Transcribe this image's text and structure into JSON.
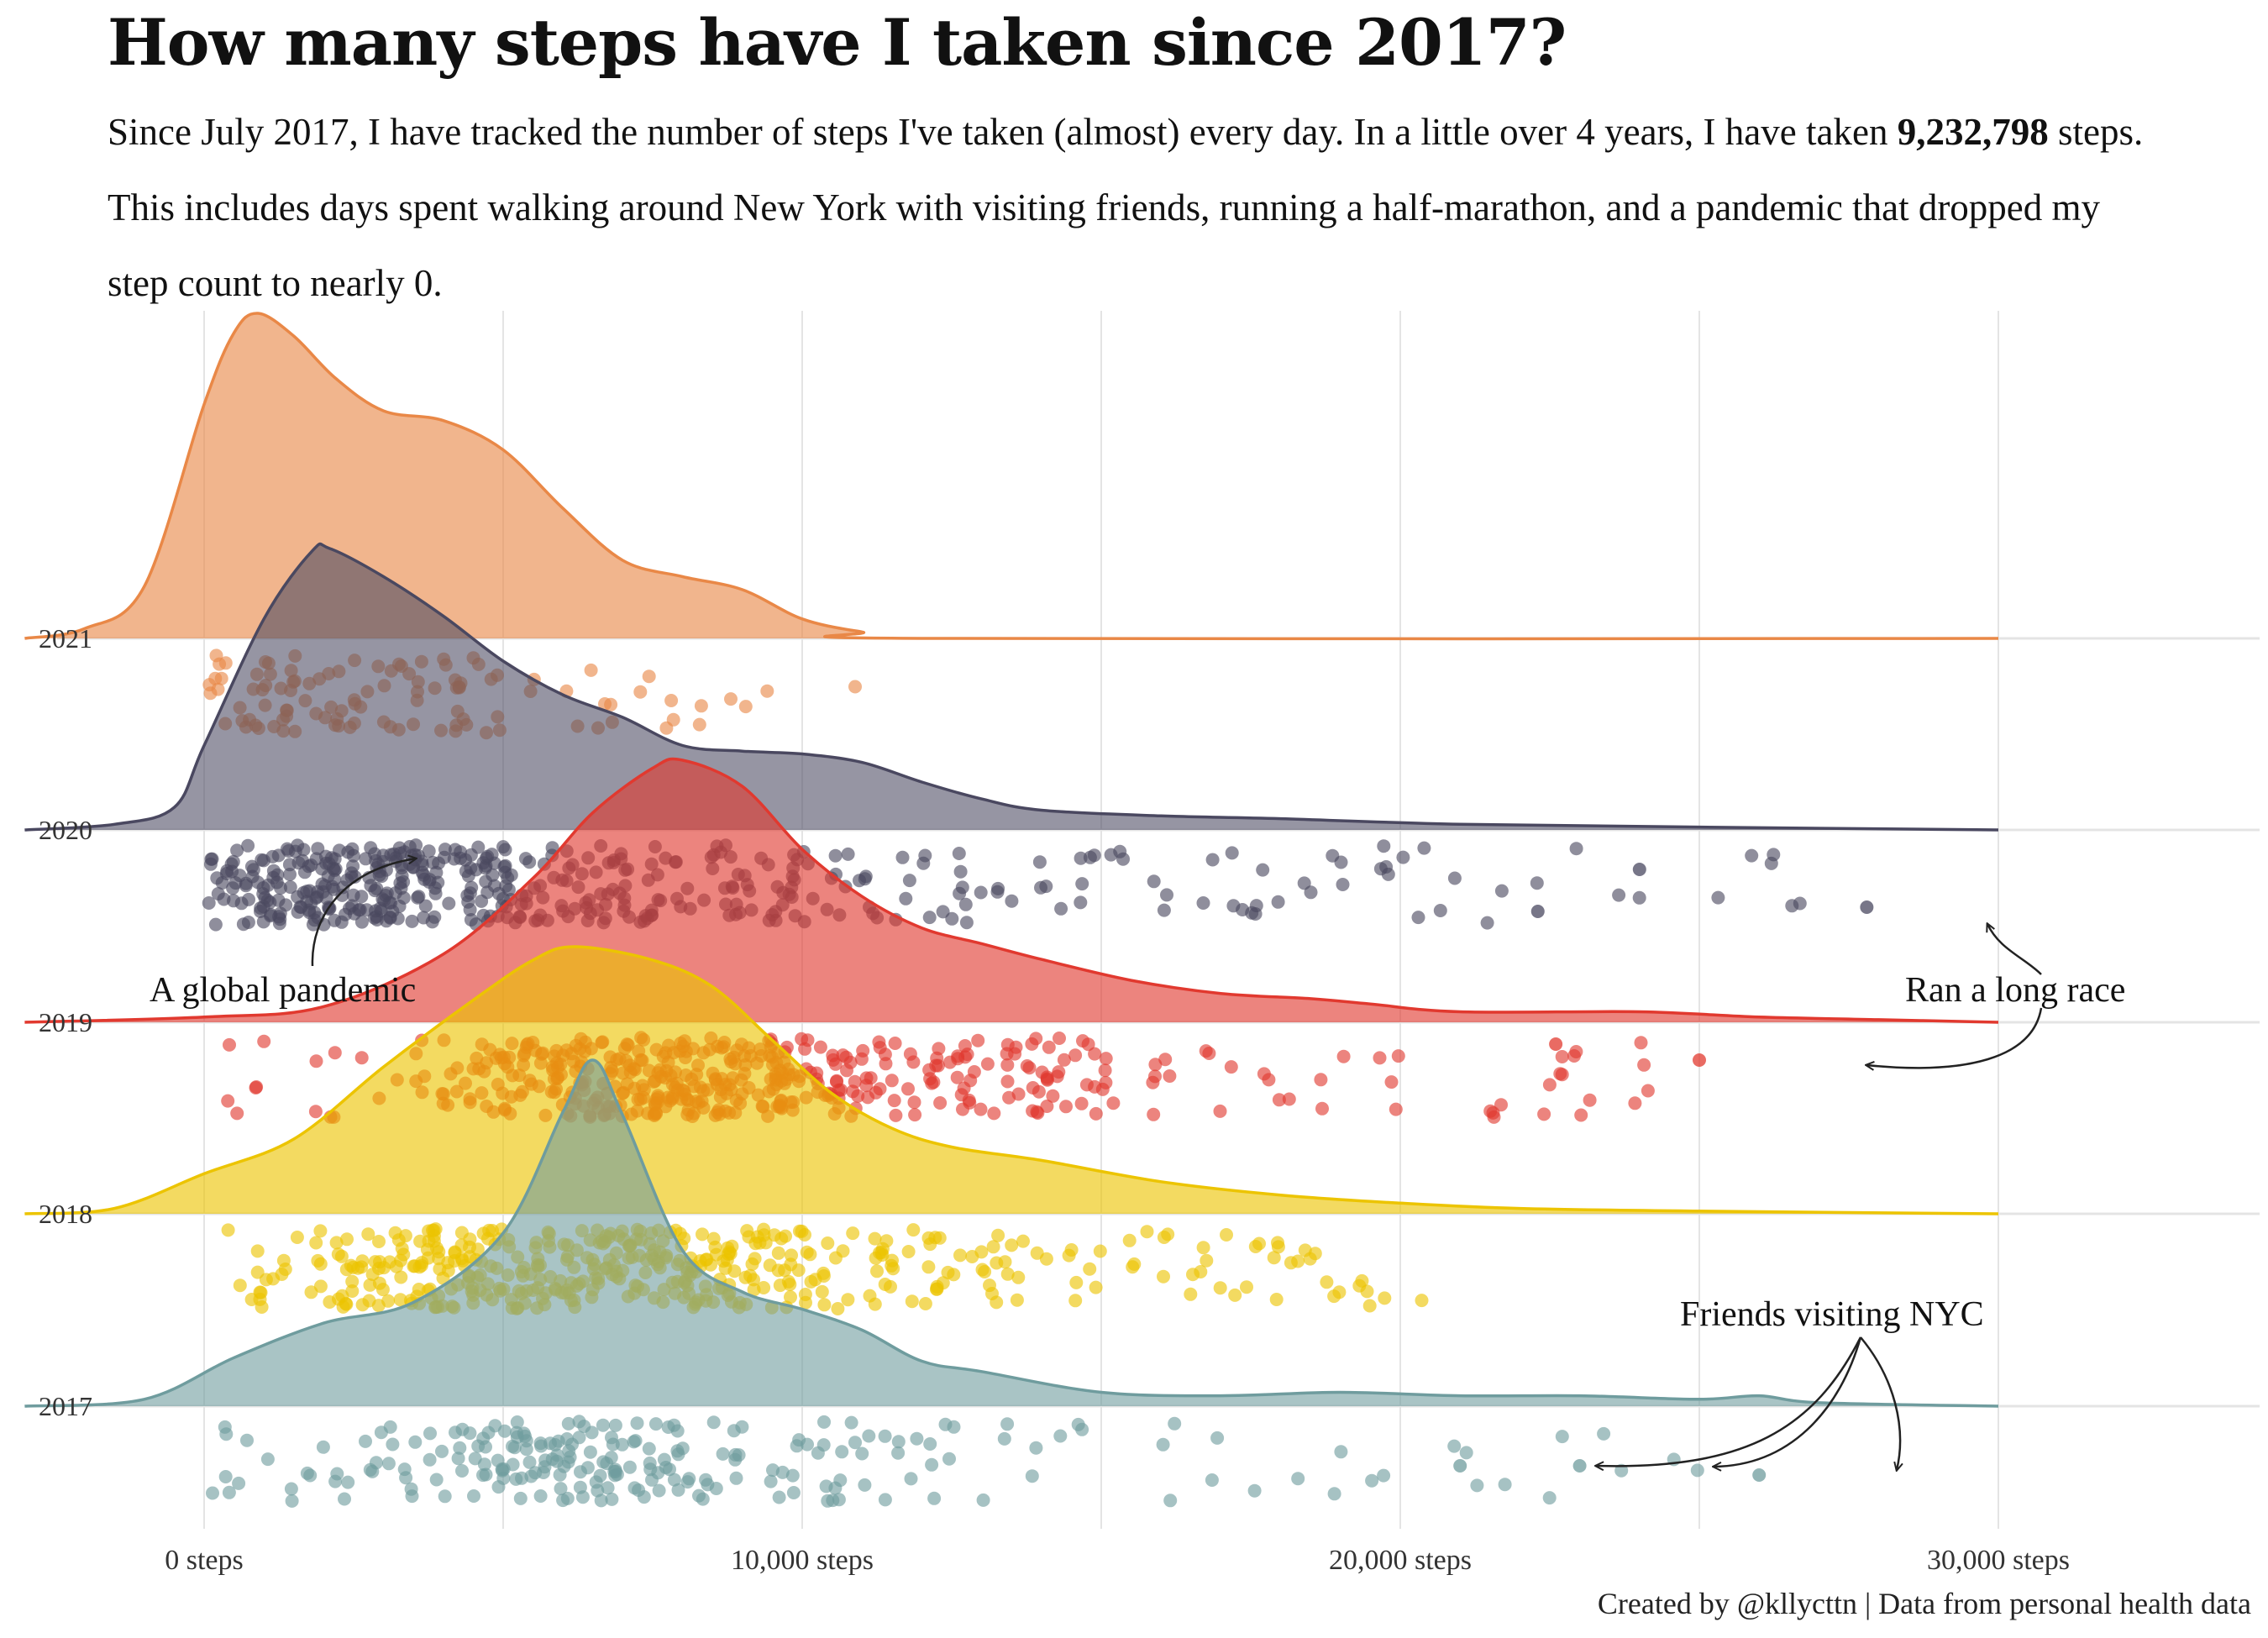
{
  "title": "How many steps have I taken since 2017?",
  "subtitle": {
    "part1": "Since July 2017, I have tracked the number of steps I've taken (almost) every day. In a little over 4 years, I have taken ",
    "total": "9,232,798",
    "part2": " steps. This includes days spent walking around New York with visiting friends, running a half-marathon, and a pandemic that dropped my step count to nearly 0."
  },
  "caption": "Created by @kllycttn | Data from personal health data",
  "chart_data": {
    "type": "ridgeline",
    "x_axis": {
      "range": [
        -3000,
        30000
      ],
      "ticks": [
        0,
        10000,
        20000,
        30000
      ],
      "tick_labels": [
        "0 steps",
        "10,000 steps",
        "20,000 steps",
        "30,000 steps"
      ]
    },
    "grid": true,
    "series": [
      {
        "name": "2017",
        "color": "#6f9c9e",
        "peak_position": 6500,
        "max_steps": 26000,
        "density": [
          [
            -3000,
            0
          ],
          [
            -1000,
            0.02
          ],
          [
            500,
            0.14
          ],
          [
            2000,
            0.24
          ],
          [
            3500,
            0.3
          ],
          [
            5000,
            0.5
          ],
          [
            6000,
            0.85
          ],
          [
            6500,
            1.0
          ],
          [
            7000,
            0.84
          ],
          [
            8000,
            0.45
          ],
          [
            9000,
            0.33
          ],
          [
            10000,
            0.28
          ],
          [
            11000,
            0.22
          ],
          [
            12000,
            0.13
          ],
          [
            13000,
            0.1
          ],
          [
            15000,
            0.04
          ],
          [
            17000,
            0.03
          ],
          [
            19000,
            0.04
          ],
          [
            21000,
            0.03
          ],
          [
            23000,
            0.03
          ],
          [
            25000,
            0.02
          ],
          [
            26000,
            0.03
          ],
          [
            27000,
            0.01
          ],
          [
            30000,
            0
          ]
        ]
      },
      {
        "name": "2018",
        "color": "#ecc400",
        "peak_position": 6200,
        "max_steps": 21000,
        "density": [
          [
            -3000,
            0
          ],
          [
            -1500,
            0.02
          ],
          [
            0,
            0.15
          ],
          [
            1500,
            0.28
          ],
          [
            3000,
            0.55
          ],
          [
            4500,
            0.8
          ],
          [
            5500,
            0.95
          ],
          [
            6200,
            1.0
          ],
          [
            7500,
            0.95
          ],
          [
            8500,
            0.85
          ],
          [
            9500,
            0.65
          ],
          [
            10500,
            0.45
          ],
          [
            11500,
            0.32
          ],
          [
            12500,
            0.25
          ],
          [
            14000,
            0.2
          ],
          [
            16000,
            0.12
          ],
          [
            18000,
            0.07
          ],
          [
            20000,
            0.04
          ],
          [
            22000,
            0.02
          ],
          [
            25000,
            0.01
          ],
          [
            30000,
            0
          ]
        ]
      },
      {
        "name": "2019",
        "color": "#e1392f",
        "peak_position": 8000,
        "max_steps": 25000,
        "density": [
          [
            -3000,
            0
          ],
          [
            0,
            0.02
          ],
          [
            2000,
            0.06
          ],
          [
            4000,
            0.26
          ],
          [
            5500,
            0.55
          ],
          [
            6500,
            0.8
          ],
          [
            7500,
            0.97
          ],
          [
            8000,
            1.0
          ],
          [
            9000,
            0.9
          ],
          [
            10000,
            0.66
          ],
          [
            11000,
            0.48
          ],
          [
            12000,
            0.36
          ],
          [
            13000,
            0.3
          ],
          [
            14000,
            0.24
          ],
          [
            15500,
            0.16
          ],
          [
            17000,
            0.11
          ],
          [
            18500,
            0.09
          ],
          [
            19500,
            0.07
          ],
          [
            21000,
            0.04
          ],
          [
            24000,
            0.04
          ],
          [
            26000,
            0.02
          ],
          [
            28000,
            0.01
          ],
          [
            30000,
            0
          ]
        ]
      },
      {
        "name": "2020",
        "color": "#4a4860",
        "peak_position": 2100,
        "max_steps": 27800,
        "density": [
          [
            -3000,
            0
          ],
          [
            -1500,
            0.02
          ],
          [
            -500,
            0.08
          ],
          [
            0,
            0.3
          ],
          [
            1000,
            0.75
          ],
          [
            1800,
            0.99
          ],
          [
            2100,
            1.0
          ],
          [
            3000,
            0.9
          ],
          [
            4000,
            0.76
          ],
          [
            5000,
            0.6
          ],
          [
            6000,
            0.48
          ],
          [
            7000,
            0.4
          ],
          [
            8000,
            0.3
          ],
          [
            9000,
            0.28
          ],
          [
            10000,
            0.27
          ],
          [
            11000,
            0.24
          ],
          [
            12000,
            0.17
          ],
          [
            13000,
            0.11
          ],
          [
            14000,
            0.07
          ],
          [
            16000,
            0.05
          ],
          [
            18000,
            0.04
          ],
          [
            21000,
            0.02
          ],
          [
            25000,
            0.01
          ],
          [
            30000,
            0
          ]
        ]
      },
      {
        "name": "2021",
        "color": "#e98847",
        "peak_position": 900,
        "max_steps": 11500,
        "density": [
          [
            -3000,
            0
          ],
          [
            -2000,
            0.03
          ],
          [
            -1000,
            0.16
          ],
          [
            0,
            0.72
          ],
          [
            500,
            0.94
          ],
          [
            900,
            1.0
          ],
          [
            1500,
            0.93
          ],
          [
            2200,
            0.8
          ],
          [
            3000,
            0.7
          ],
          [
            4000,
            0.67
          ],
          [
            5000,
            0.58
          ],
          [
            6000,
            0.4
          ],
          [
            7000,
            0.24
          ],
          [
            8000,
            0.19
          ],
          [
            9000,
            0.15
          ],
          [
            10000,
            0.06
          ],
          [
            11000,
            0.02
          ],
          [
            12000,
            0
          ],
          [
            30000,
            0
          ]
        ]
      }
    ],
    "annotations": [
      {
        "text": "A global pandemic",
        "series": "2020",
        "points_to": [
          1000
        ]
      },
      {
        "text": "Ran a long race",
        "series": "2019",
        "points_to": [
          25000,
          27800
        ]
      },
      {
        "text": "Friends visiting NYC",
        "series": "2017",
        "points_to": [
          21000,
          23000,
          26000
        ]
      }
    ]
  }
}
